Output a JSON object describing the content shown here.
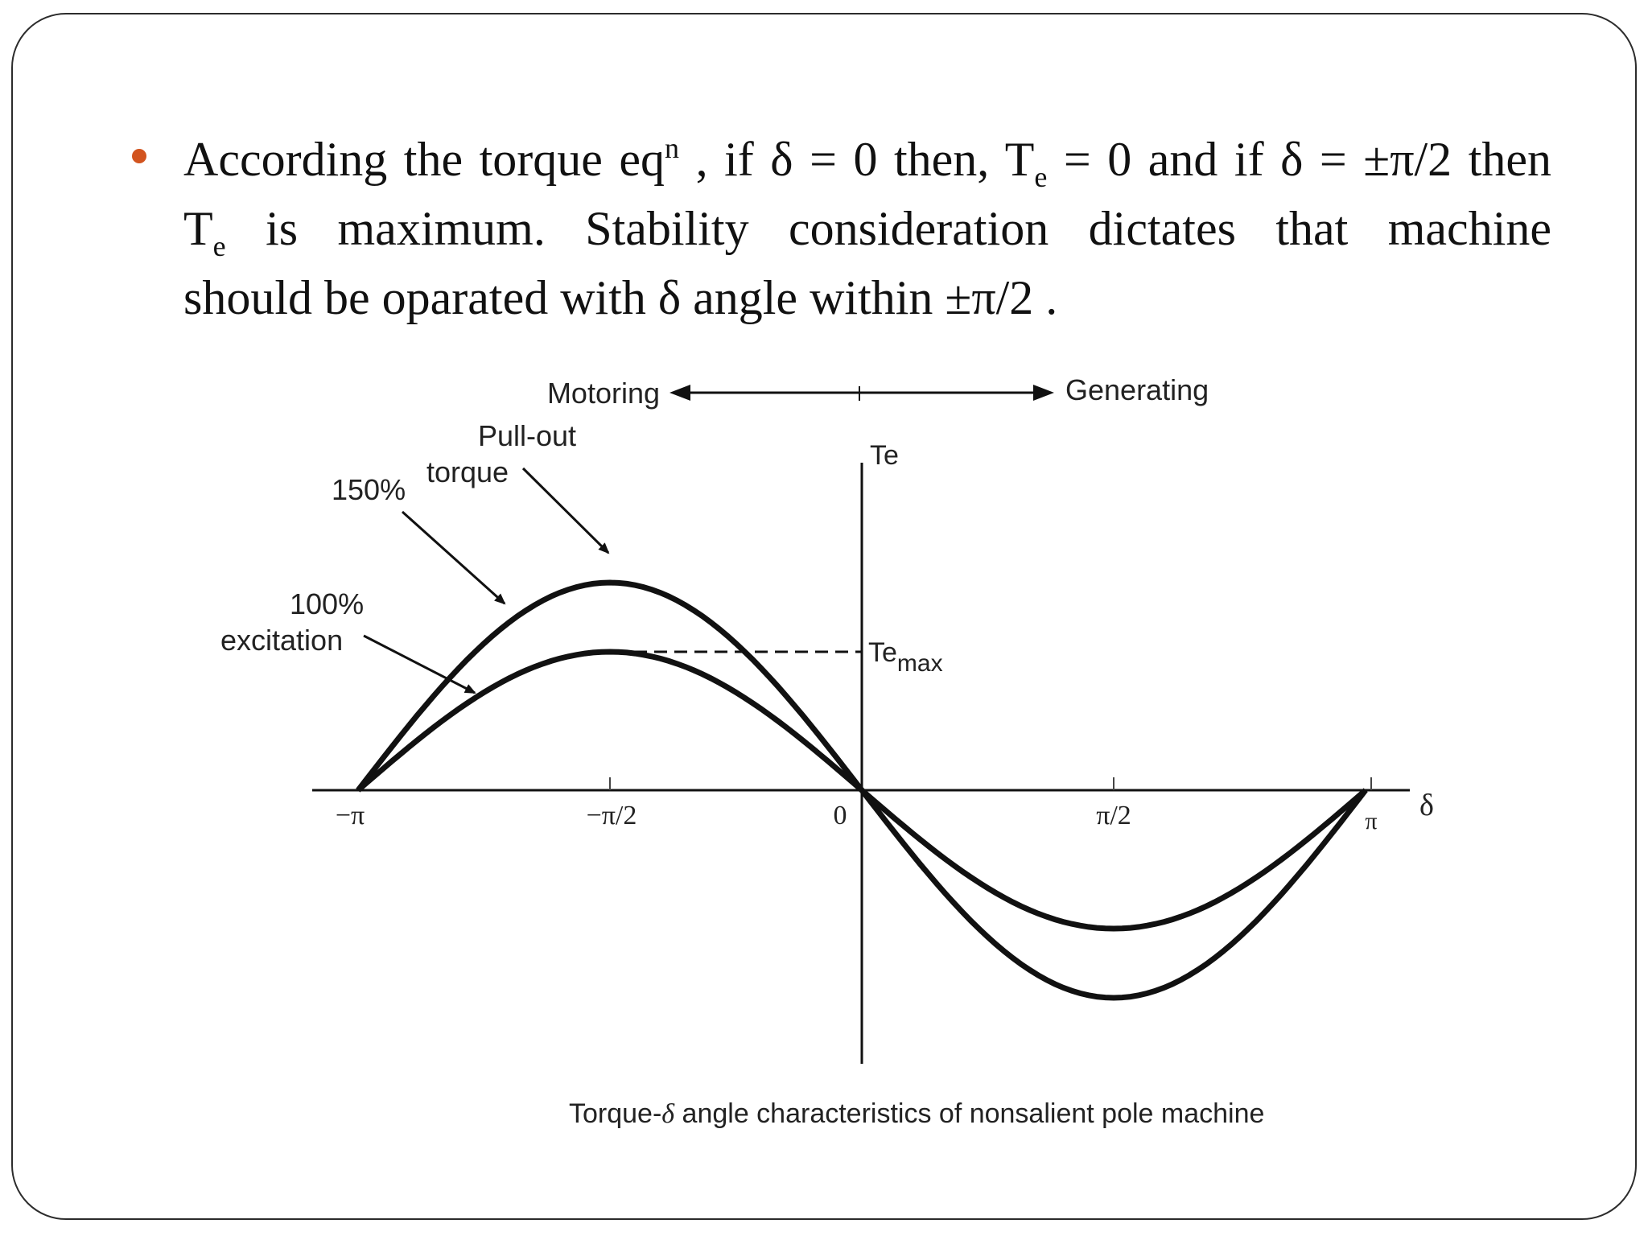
{
  "bullet": {
    "line1_a": "According the torque eq",
    "line1_sup": "n",
    "line1_b": " , if δ = 0 then, T",
    "line1_sub": "e",
    "line1_c": " = 0 and if  δ = ±π/2  then",
    "line2_a": "T",
    "line2_sub": "e",
    "line2_b": "  is  maximum.  Stability  consideration  dictates  that  machine",
    "line3": "should be oparated with δ angle within  ±π/2 ."
  },
  "diagram": {
    "motoring_label": "Motoring",
    "generating_label": "Generating",
    "pullout_line1": "Pull-out",
    "pullout_line2": "torque",
    "label_150": "150%",
    "label_100_line1": "100%",
    "label_100_line2": "excitation",
    "y_axis_label": "Te",
    "temax_main": "Te",
    "temax_sub": "max",
    "x_axis_symbol": "δ",
    "tick_neg_pi": "−π",
    "tick_neg_half_pi": "−π/2",
    "tick_zero": "0",
    "tick_half_pi": "π/2",
    "tick_pi": "π",
    "caption_a": "Torque-",
    "caption_delta": "δ",
    "caption_b": " angle characteristics of nonsalient pole machine"
  },
  "curves": [
    {
      "excitation_percent": 150,
      "peak_relative": 1.5
    },
    {
      "excitation_percent": 100,
      "peak_relative": 1.0
    }
  ]
}
